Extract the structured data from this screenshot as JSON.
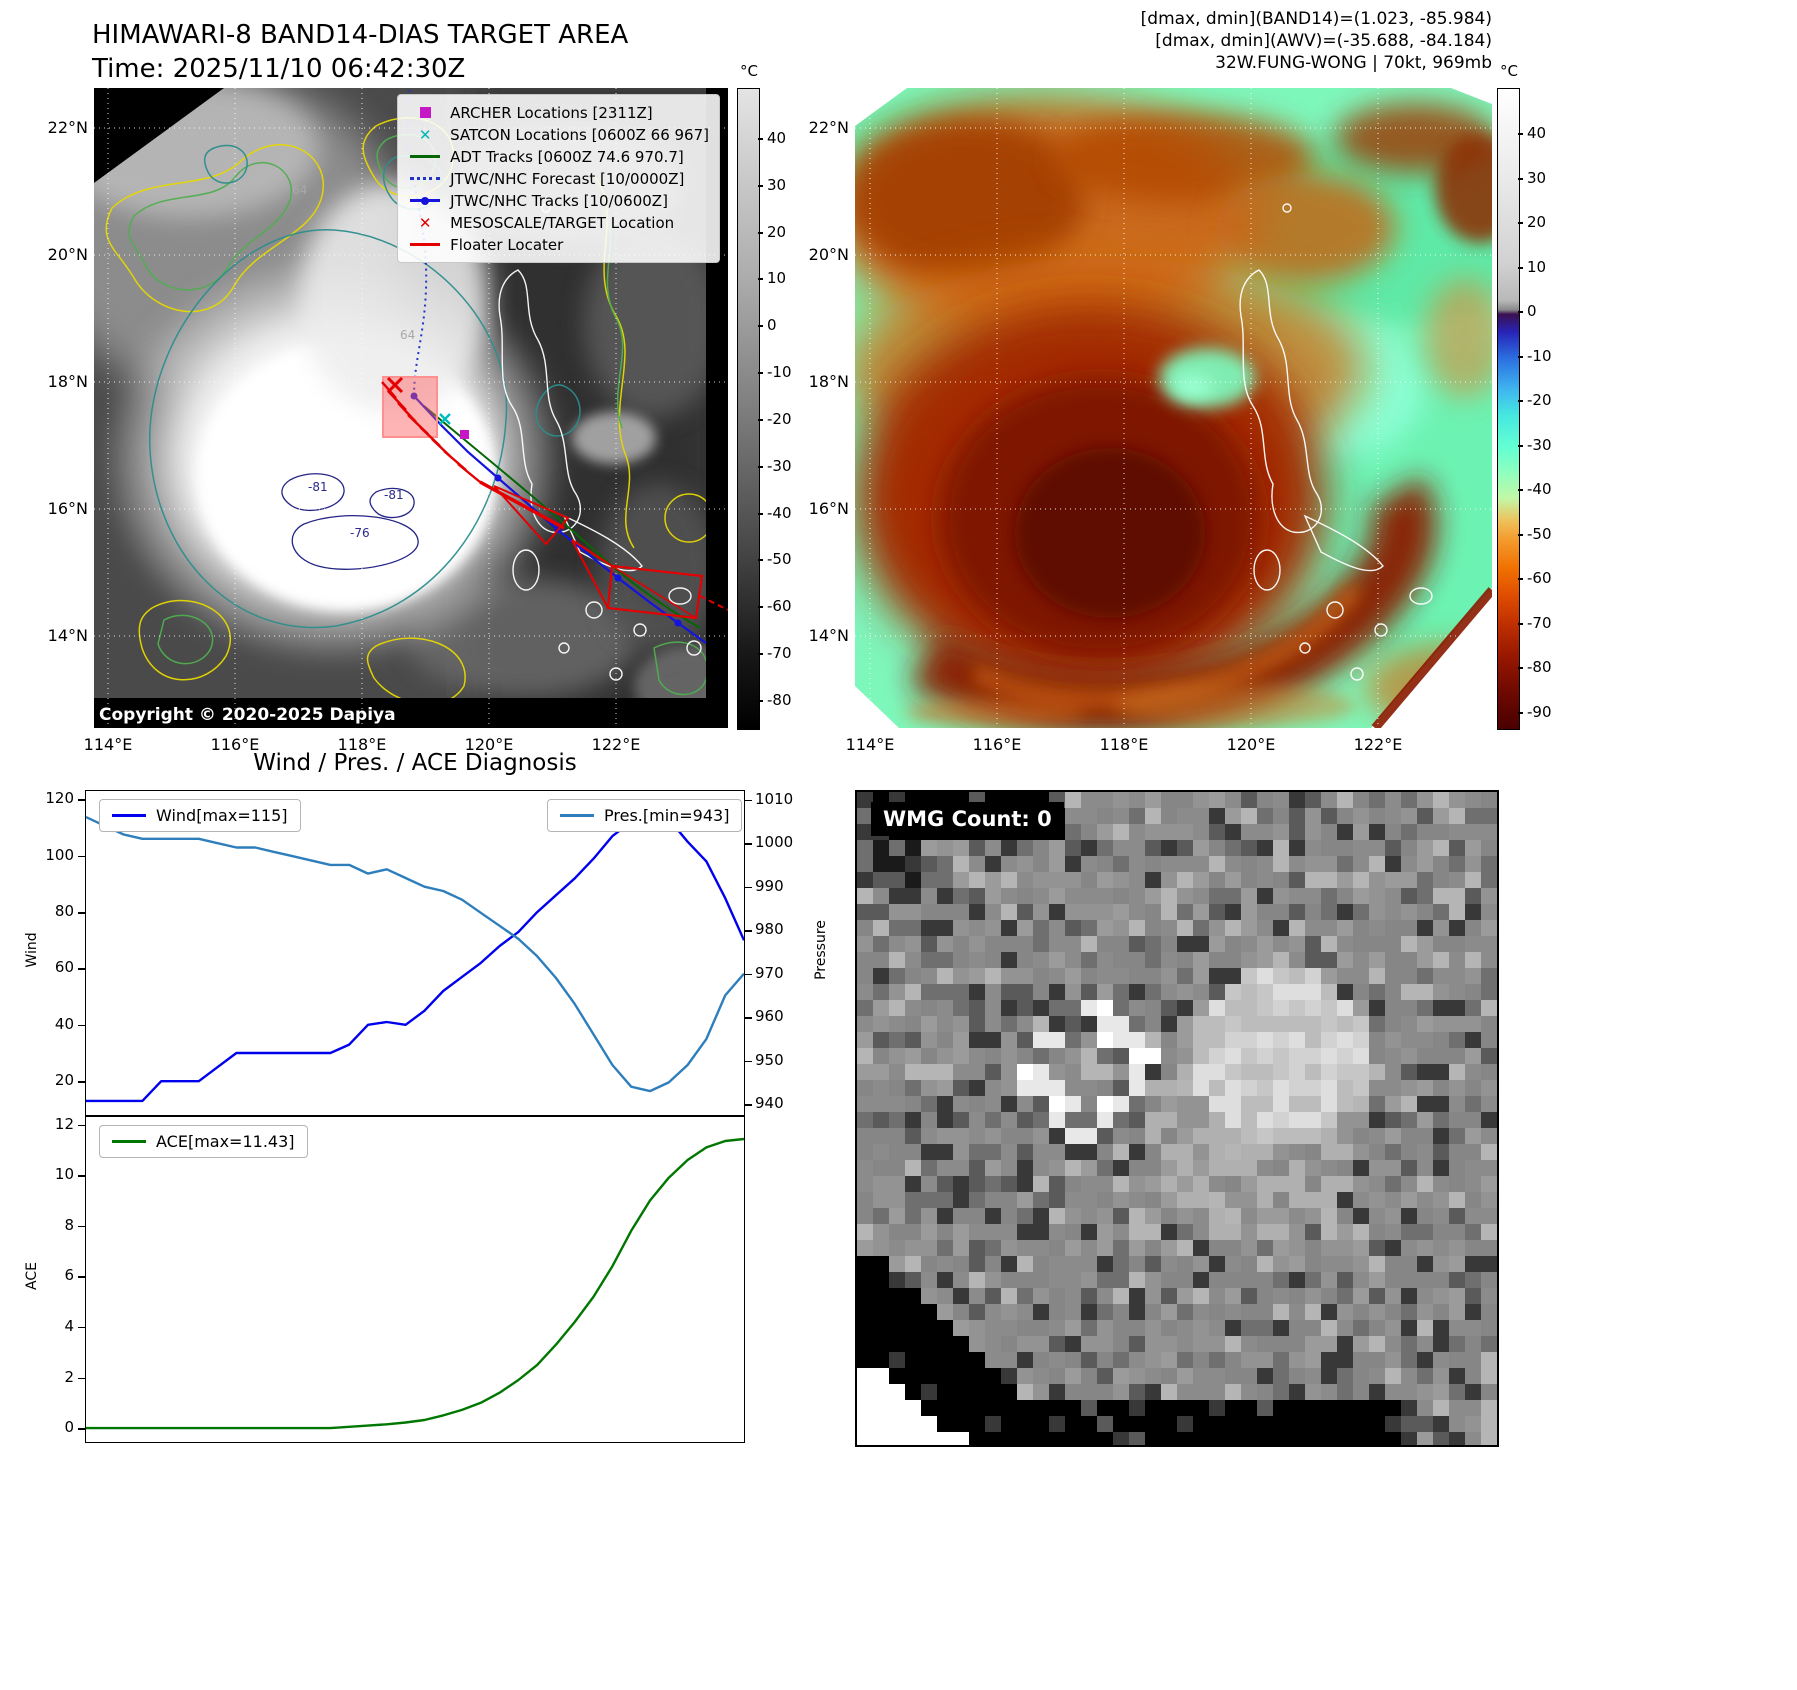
{
  "band14_panel": {
    "title": "HIMAWARI-8 BAND14-DIAS TARGET AREA",
    "time_line": "Time: 2025/11/10 06:42:30Z",
    "copyright": "Copyright © 2020-2025 Dapiya",
    "legend_items": [
      {
        "label": "ARCHER Locations [2311Z]",
        "marker": "square",
        "color": "#c617c6"
      },
      {
        "label": "SATCON Locations [0600Z 66 967]",
        "marker": "x",
        "color": "#00b8b8"
      },
      {
        "label": "ADT Tracks [0600Z 74.6 970.7]",
        "marker": "line",
        "color": "#056605"
      },
      {
        "label": "JTWC/NHC Forecast [10/0000Z]",
        "marker": "dotted",
        "color": "#2233cc"
      },
      {
        "label": "JTWC/NHC Tracks [10/0600Z]",
        "marker": "line-marker",
        "color": "#1414dd"
      },
      {
        "label": "MESOSCALE/TARGET Location",
        "marker": "x",
        "color": "#e40000"
      },
      {
        "label": "Floater Locater",
        "marker": "line",
        "color": "#e40000"
      }
    ],
    "x_ticks": [
      "114°E",
      "116°E",
      "118°E",
      "120°E",
      "122°E"
    ],
    "y_ticks": [
      "22°N",
      "20°N",
      "18°N",
      "16°N",
      "14°N"
    ],
    "colorbar": {
      "unit": "°C",
      "ticks": [
        40,
        30,
        20,
        10,
        0,
        -10,
        -20,
        -30,
        -40,
        -50,
        -60,
        -70,
        -80
      ]
    },
    "contour_labels": [
      "64",
      "64",
      "-81",
      "-81",
      "-76"
    ]
  },
  "awv_panel": {
    "info_lines": [
      "[dmax, dmin](BAND14)=(1.023, -85.984)",
      "[dmax, dmin](AWV)=(-35.688, -84.184)",
      "32W.FUNG-WONG | 70kt, 969mb"
    ],
    "x_ticks": [
      "114°E",
      "116°E",
      "118°E",
      "120°E",
      "122°E"
    ],
    "y_ticks": [
      "22°N",
      "20°N",
      "18°N",
      "16°N",
      "14°N"
    ],
    "colorbar": {
      "unit": "°C",
      "ticks": [
        40,
        30,
        20,
        10,
        0,
        -10,
        -20,
        -30,
        -40,
        -50,
        -60,
        -70,
        -80,
        -90
      ]
    }
  },
  "chart_data": [
    {
      "type": "line",
      "title": "Wind / Pres. / ACE Diagnosis",
      "series": [
        {
          "name": "Wind[max=115]",
          "axis": "left",
          "color": "#0000ee",
          "values": [
            13,
            13,
            13,
            13,
            20,
            20,
            20,
            25,
            30,
            30,
            30,
            30,
            30,
            30,
            33,
            40,
            41,
            40,
            45,
            52,
            57,
            62,
            68,
            73,
            80,
            86,
            92,
            99,
            107,
            112,
            115,
            113,
            105,
            98,
            85,
            70
          ]
        },
        {
          "name": "Pres.[min=943]",
          "axis": "right",
          "color": "#2e7ebc",
          "values": [
            1006,
            1004,
            1002,
            1001,
            1001,
            1001,
            1001,
            1000,
            999,
            999,
            998,
            997,
            996,
            995,
            995,
            993,
            994,
            992,
            990,
            989,
            987,
            984,
            981,
            978,
            974,
            969,
            963,
            956,
            949,
            944,
            943,
            945,
            949,
            955,
            965,
            970
          ]
        }
      ],
      "left_axis": {
        "label": "Wind",
        "ticks": [
          20,
          40,
          60,
          80,
          100,
          120
        ],
        "range": [
          8,
          123
        ]
      },
      "right_axis": {
        "label": "Pressure",
        "ticks": [
          940,
          950,
          960,
          970,
          980,
          990,
          1000,
          1010
        ],
        "range": [
          937.5,
          1012
        ]
      },
      "grid": false,
      "legend_position": "top-left and top-right"
    },
    {
      "type": "line",
      "series": [
        {
          "name": "ACE[max=11.43]",
          "axis": "left",
          "color": "#007700",
          "values": [
            0,
            0,
            0,
            0,
            0,
            0,
            0,
            0,
            0,
            0,
            0,
            0,
            0,
            0,
            0.05,
            0.1,
            0.15,
            0.22,
            0.32,
            0.5,
            0.72,
            1,
            1.4,
            1.9,
            2.5,
            3.3,
            4.2,
            5.2,
            6.4,
            7.8,
            9,
            9.9,
            10.6,
            11.1,
            11.35,
            11.43
          ]
        }
      ],
      "left_axis": {
        "label": "ACE",
        "ticks": [
          0,
          2,
          4,
          6,
          8,
          10,
          12
        ],
        "range": [
          -0.55,
          12.3
        ]
      },
      "grid": false,
      "legend_position": "top-left"
    }
  ],
  "wmg_panel": {
    "count_label": "WMG Count: 0"
  }
}
